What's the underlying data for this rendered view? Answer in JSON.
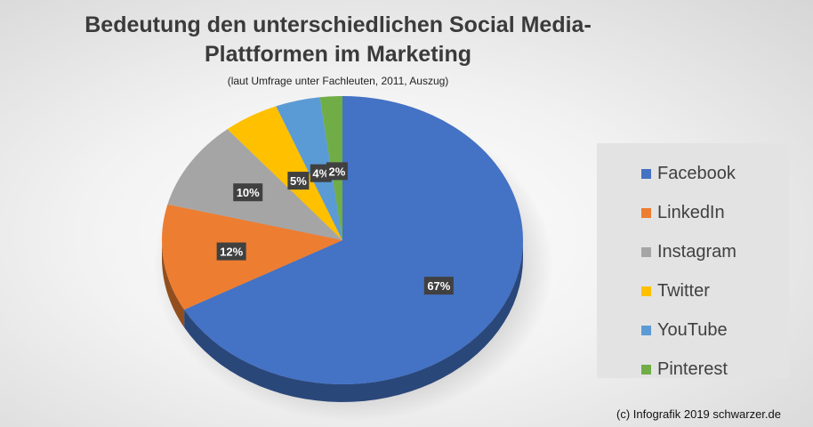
{
  "title_line1": "Bedeutung den unterschiedlichen Social Media-",
  "title_line2": "Plattformen im Marketing",
  "subtitle": "(laut Umfrage unter Fachleuten, 2011, Auszug)",
  "credit": "(c) Infografik 2019 schwarzer.de",
  "chart_data": {
    "type": "pie",
    "style": "3d",
    "legend_position": "right",
    "slices": [
      {
        "name": "Facebook",
        "value": 67,
        "label": "67%",
        "color": "#4472C4"
      },
      {
        "name": "LinkedIn",
        "value": 12,
        "label": "12%",
        "color": "#ED7D31"
      },
      {
        "name": "Instagram",
        "value": 10,
        "label": "10%",
        "color": "#A5A5A5"
      },
      {
        "name": "Twitter",
        "value": 5,
        "label": "5%",
        "color": "#FFC000"
      },
      {
        "name": "YouTube",
        "value": 4,
        "label": "4%",
        "color": "#5B9BD5"
      },
      {
        "name": "Pinterest",
        "value": 2,
        "label": "2%",
        "color": "#70AD47"
      }
    ]
  }
}
